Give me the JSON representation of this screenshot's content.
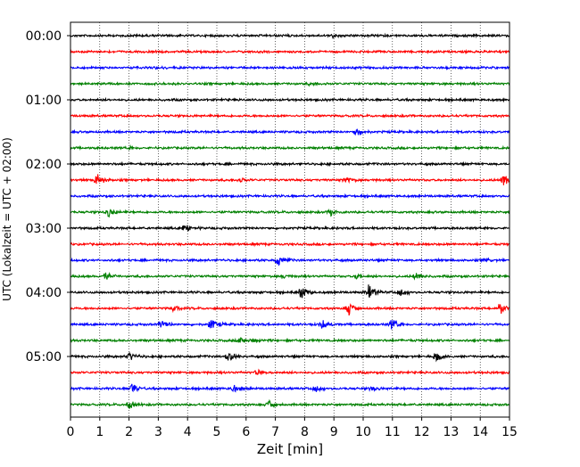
{
  "chart_data": {
    "type": "line",
    "chart_kind": "helicorder",
    "title": "",
    "xlabel": "Zeit  [min]",
    "ylabel": "UTC (Lokalzeit = UTC + 02:00)",
    "xlim": [
      0,
      15
    ],
    "x_ticks": [
      "0",
      "1",
      "2",
      "3",
      "4",
      "5",
      "6",
      "7",
      "8",
      "9",
      "10",
      "11",
      "12",
      "13",
      "14",
      "15"
    ],
    "y_ticks": [
      "00:00",
      "01:00",
      "02:00",
      "03:00",
      "04:00",
      "05:00"
    ],
    "row_interval_minutes": 15,
    "row_count": 24,
    "vertical_grid": "dotted at each minute",
    "trace_colors": [
      "#000000",
      "#ff0000",
      "#0000ff",
      "#008000"
    ],
    "events": [
      {
        "row": 0,
        "minute": 9.0,
        "amplitude": 0.6
      },
      {
        "row": 2,
        "minute": 3.0,
        "amplitude": 0.4
      },
      {
        "row": 3,
        "minute": 8.2,
        "amplitude": 0.5
      },
      {
        "row": 6,
        "minute": 9.8,
        "amplitude": 1.3
      },
      {
        "row": 7,
        "minute": 2.0,
        "amplitude": 0.4
      },
      {
        "row": 9,
        "minute": 0.9,
        "amplitude": 2.2
      },
      {
        "row": 9,
        "minute": 5.8,
        "amplitude": 0.5
      },
      {
        "row": 9,
        "minute": 9.4,
        "amplitude": 1.4
      },
      {
        "row": 9,
        "minute": 14.8,
        "amplitude": 2.0
      },
      {
        "row": 11,
        "minute": 1.3,
        "amplitude": 1.5
      },
      {
        "row": 11,
        "minute": 8.9,
        "amplitude": 1.2
      },
      {
        "row": 12,
        "minute": 3.9,
        "amplitude": 1.8
      },
      {
        "row": 14,
        "minute": 7.1,
        "amplitude": 1.8
      },
      {
        "row": 14,
        "minute": 14.2,
        "amplitude": 0.6
      },
      {
        "row": 15,
        "minute": 1.2,
        "amplitude": 1.6
      },
      {
        "row": 15,
        "minute": 7.3,
        "amplitude": 0.6
      },
      {
        "row": 15,
        "minute": 9.8,
        "amplitude": 1.0
      },
      {
        "row": 15,
        "minute": 11.8,
        "amplitude": 1.2
      },
      {
        "row": 16,
        "minute": 7.9,
        "amplitude": 2.2
      },
      {
        "row": 16,
        "minute": 10.2,
        "amplitude": 2.6
      },
      {
        "row": 16,
        "minute": 11.3,
        "amplitude": 1.6
      },
      {
        "row": 17,
        "minute": 3.5,
        "amplitude": 1.2
      },
      {
        "row": 17,
        "minute": 9.5,
        "amplitude": 2.4
      },
      {
        "row": 17,
        "minute": 14.7,
        "amplitude": 2.0
      },
      {
        "row": 18,
        "minute": 3.1,
        "amplitude": 1.8
      },
      {
        "row": 18,
        "minute": 4.8,
        "amplitude": 1.8
      },
      {
        "row": 18,
        "minute": 8.6,
        "amplitude": 1.6
      },
      {
        "row": 18,
        "minute": 11.0,
        "amplitude": 1.8
      },
      {
        "row": 19,
        "minute": 5.8,
        "amplitude": 1.0
      },
      {
        "row": 19,
        "minute": 6.2,
        "amplitude": 0.8
      },
      {
        "row": 20,
        "minute": 2.0,
        "amplitude": 1.6
      },
      {
        "row": 20,
        "minute": 5.4,
        "amplitude": 1.8
      },
      {
        "row": 20,
        "minute": 12.5,
        "amplitude": 1.8
      },
      {
        "row": 21,
        "minute": 6.4,
        "amplitude": 1.0
      },
      {
        "row": 22,
        "minute": 2.1,
        "amplitude": 1.5
      },
      {
        "row": 22,
        "minute": 5.6,
        "amplitude": 1.3
      },
      {
        "row": 22,
        "minute": 8.4,
        "amplitude": 1.3
      },
      {
        "row": 22,
        "minute": 10.3,
        "amplitude": 0.7
      },
      {
        "row": 23,
        "minute": 2.0,
        "amplitude": 1.4
      },
      {
        "row": 23,
        "minute": 6.8,
        "amplitude": 1.6
      }
    ]
  }
}
